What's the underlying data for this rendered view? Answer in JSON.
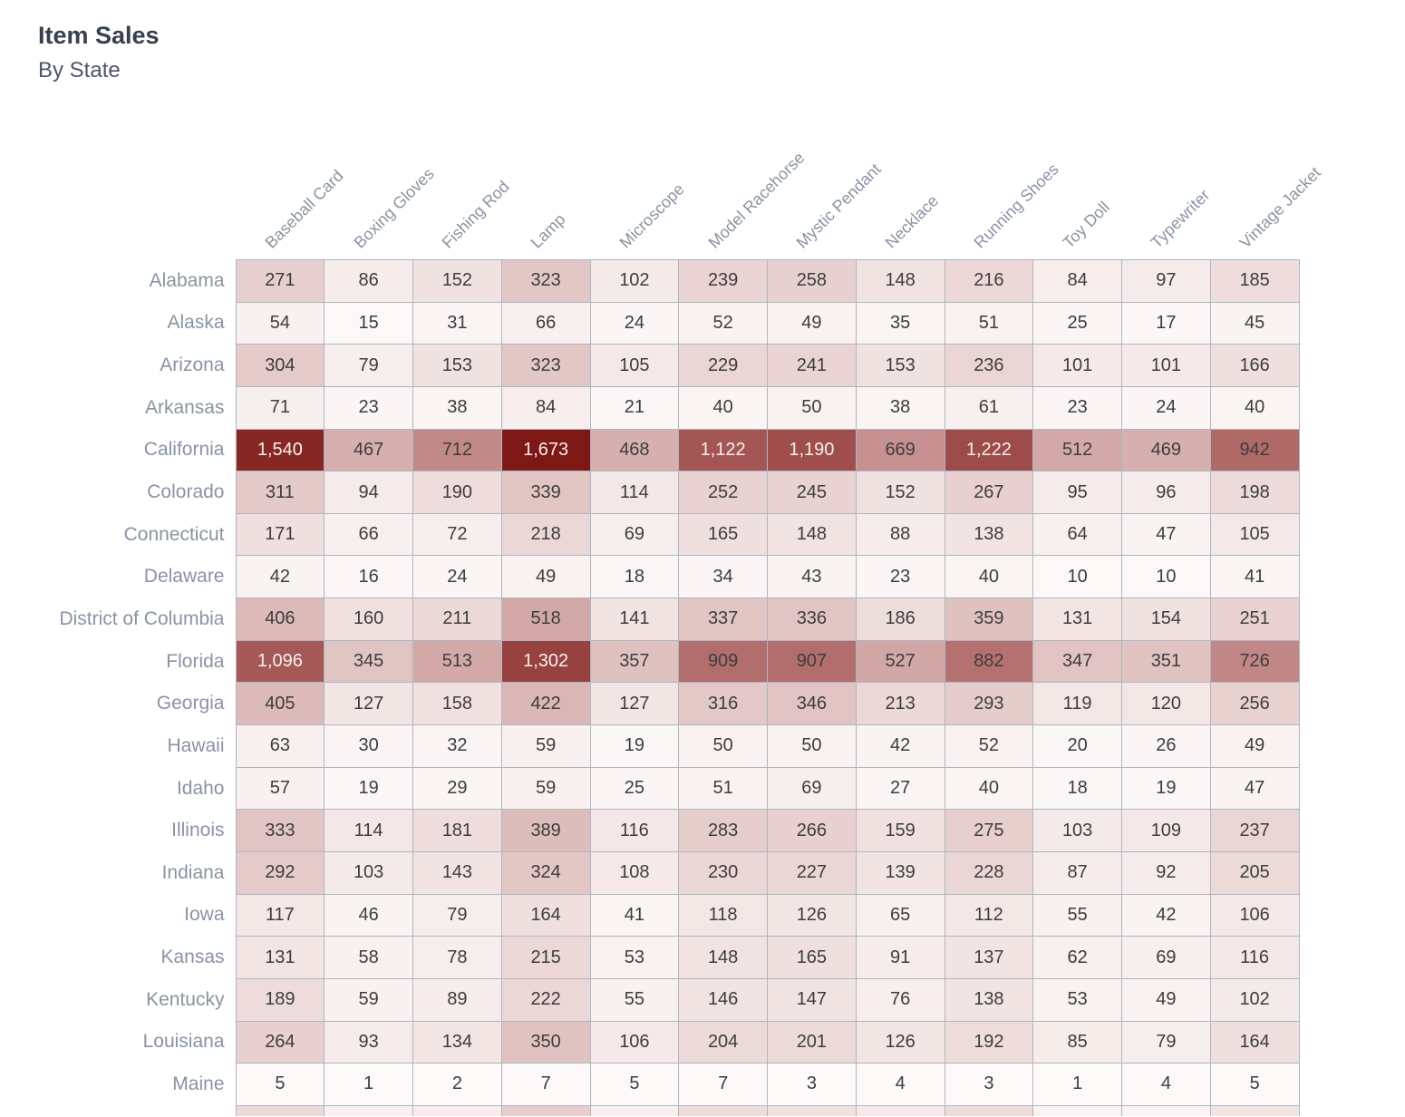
{
  "title": "Item Sales",
  "subtitle": "By State",
  "colors": {
    "title": "#36404e",
    "subtitle": "#4c5668",
    "axis_label": "#8a93a4",
    "grid_border": "#aeb5c2",
    "cell_text_dark": "#3d3d3d",
    "cell_text_light": "#f7f1f0"
  },
  "chart_data": {
    "type": "heatmap",
    "title": "Item Sales",
    "subtitle": "By State",
    "legend_position": "none",
    "grid": true,
    "columns": [
      "Baseball Card",
      "Boxing Gloves",
      "Fishing Rod",
      "Lamp",
      "Microscope",
      "Model Racehorse",
      "Mystic Pendant",
      "Necklace",
      "Running Shoes",
      "Toy Doll",
      "Typewriter",
      "Vintage Jacket"
    ],
    "rows": [
      {
        "state": "Alabama",
        "values": [
          271,
          86,
          152,
          323,
          102,
          239,
          258,
          148,
          216,
          84,
          97,
          185
        ]
      },
      {
        "state": "Alaska",
        "values": [
          54,
          15,
          31,
          66,
          24,
          52,
          49,
          35,
          51,
          25,
          17,
          45
        ]
      },
      {
        "state": "Arizona",
        "values": [
          304,
          79,
          153,
          323,
          105,
          229,
          241,
          153,
          236,
          101,
          101,
          166
        ]
      },
      {
        "state": "Arkansas",
        "values": [
          71,
          23,
          38,
          84,
          21,
          40,
          50,
          38,
          61,
          23,
          24,
          40
        ]
      },
      {
        "state": "California",
        "values": [
          1540,
          467,
          712,
          1673,
          468,
          1122,
          1190,
          669,
          1222,
          512,
          469,
          942
        ]
      },
      {
        "state": "Colorado",
        "values": [
          311,
          94,
          190,
          339,
          114,
          252,
          245,
          152,
          267,
          95,
          96,
          198
        ]
      },
      {
        "state": "Connecticut",
        "values": [
          171,
          66,
          72,
          218,
          69,
          165,
          148,
          88,
          138,
          64,
          47,
          105
        ]
      },
      {
        "state": "Delaware",
        "values": [
          42,
          16,
          24,
          49,
          18,
          34,
          43,
          23,
          40,
          10,
          10,
          41
        ]
      },
      {
        "state": "District of Columbia",
        "values": [
          406,
          160,
          211,
          518,
          141,
          337,
          336,
          186,
          359,
          131,
          154,
          251
        ]
      },
      {
        "state": "Florida",
        "values": [
          1096,
          345,
          513,
          1302,
          357,
          909,
          907,
          527,
          882,
          347,
          351,
          726
        ]
      },
      {
        "state": "Georgia",
        "values": [
          405,
          127,
          158,
          422,
          127,
          316,
          346,
          213,
          293,
          119,
          120,
          256
        ]
      },
      {
        "state": "Hawaii",
        "values": [
          63,
          30,
          32,
          59,
          19,
          50,
          50,
          42,
          52,
          20,
          26,
          49
        ]
      },
      {
        "state": "Idaho",
        "values": [
          57,
          19,
          29,
          59,
          25,
          51,
          69,
          27,
          40,
          18,
          19,
          47
        ]
      },
      {
        "state": "Illinois",
        "values": [
          333,
          114,
          181,
          389,
          116,
          283,
          266,
          159,
          275,
          103,
          109,
          237
        ]
      },
      {
        "state": "Indiana",
        "values": [
          292,
          103,
          143,
          324,
          108,
          230,
          227,
          139,
          228,
          87,
          92,
          205
        ]
      },
      {
        "state": "Iowa",
        "values": [
          117,
          46,
          79,
          164,
          41,
          118,
          126,
          65,
          112,
          55,
          42,
          106
        ]
      },
      {
        "state": "Kansas",
        "values": [
          131,
          58,
          78,
          215,
          53,
          148,
          165,
          91,
          137,
          62,
          69,
          116
        ]
      },
      {
        "state": "Kentucky",
        "values": [
          189,
          59,
          89,
          222,
          55,
          146,
          147,
          76,
          138,
          53,
          49,
          102
        ]
      },
      {
        "state": "Louisiana",
        "values": [
          264,
          93,
          134,
          350,
          106,
          204,
          201,
          126,
          192,
          85,
          79,
          164
        ]
      },
      {
        "state": "Maine",
        "values": [
          5,
          1,
          2,
          7,
          5,
          7,
          3,
          4,
          3,
          1,
          4,
          5
        ]
      }
    ],
    "value_range": [
      0,
      1673
    ],
    "color_scale": {
      "stops": [
        {
          "t": 0.0,
          "color": "#fdfaf9"
        },
        {
          "t": 0.5,
          "color": "#b77674"
        },
        {
          "t": 1.0,
          "color": "#7e1815"
        }
      ]
    },
    "light_text_threshold": 0.6,
    "partial_row_colors": [
      "#ecd9d8",
      "#f8f1f0",
      "#f7edec",
      "#e7cecd",
      "#f7f0ef",
      "#eedcda",
      "#f0e0de",
      "#f5eae9",
      "#eedcdb",
      "#f9f3f2",
      "#f9f3f2",
      "#f2e4e3"
    ]
  }
}
